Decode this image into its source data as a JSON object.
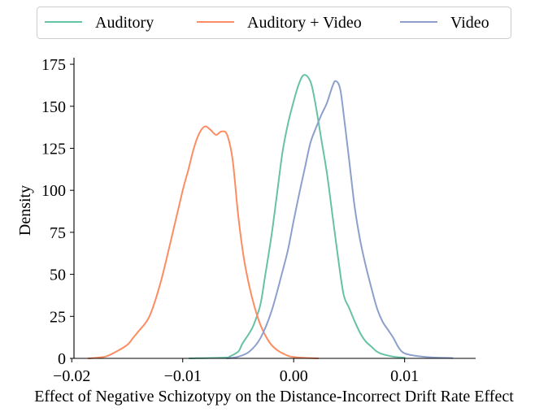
{
  "chart_data": {
    "type": "line",
    "title": "",
    "xlabel": "Effect of Negative Schizotypy on the Distance-Incorrect Drift Rate Effect",
    "ylabel": "Density",
    "xlim": [
      -0.0198,
      0.0164
    ],
    "ylim": [
      0,
      176
    ],
    "x_ticks": [
      -0.02,
      -0.01,
      0.0,
      0.01
    ],
    "x_tick_labels": [
      "−0.02",
      "−0.01",
      "0.00",
      "0.01"
    ],
    "y_ticks": [
      0,
      25,
      50,
      75,
      100,
      125,
      150,
      175
    ],
    "y_tick_labels": [
      "0",
      "25",
      "50",
      "75",
      "100",
      "125",
      "150",
      "175"
    ],
    "grid": false,
    "legend": {
      "placement": "top-center",
      "columns": 3
    },
    "series": [
      {
        "name": "Auditory",
        "color": "#66c2a5",
        "points": [
          [
            -0.0094,
            0
          ],
          [
            -0.006,
            0.5
          ],
          [
            -0.0058,
            1
          ],
          [
            -0.005,
            4
          ],
          [
            -0.0046,
            9
          ],
          [
            -0.004,
            15
          ],
          [
            -0.0036,
            20
          ],
          [
            -0.003,
            32
          ],
          [
            -0.0026,
            48
          ],
          [
            -0.002,
            73
          ],
          [
            -0.0015,
            98
          ],
          [
            -0.001,
            123
          ],
          [
            -0.0005,
            140
          ],
          [
            0.0,
            153
          ],
          [
            0.0004,
            162
          ],
          [
            0.0008,
            168
          ],
          [
            0.0012,
            168
          ],
          [
            0.0016,
            163
          ],
          [
            0.002,
            150
          ],
          [
            0.0025,
            130
          ],
          [
            0.003,
            110
          ],
          [
            0.0035,
            85
          ],
          [
            0.004,
            60
          ],
          [
            0.0045,
            38
          ],
          [
            0.005,
            30
          ],
          [
            0.0055,
            22
          ],
          [
            0.006,
            15
          ],
          [
            0.0065,
            10
          ],
          [
            0.007,
            7
          ],
          [
            0.0075,
            4
          ],
          [
            0.008,
            2.5
          ],
          [
            0.009,
            1
          ],
          [
            0.01,
            0.4
          ]
        ]
      },
      {
        "name": "Auditory + Video",
        "color": "#fc8d62",
        "points": [
          [
            -0.0185,
            0
          ],
          [
            -0.017,
            1
          ],
          [
            -0.016,
            4
          ],
          [
            -0.015,
            8
          ],
          [
            -0.0145,
            12
          ],
          [
            -0.014,
            16
          ],
          [
            -0.013,
            25
          ],
          [
            -0.012,
            45
          ],
          [
            -0.011,
            72
          ],
          [
            -0.01,
            100
          ],
          [
            -0.0095,
            112
          ],
          [
            -0.009,
            125
          ],
          [
            -0.0085,
            134
          ],
          [
            -0.008,
            138
          ],
          [
            -0.0075,
            136
          ],
          [
            -0.007,
            133
          ],
          [
            -0.0065,
            135
          ],
          [
            -0.006,
            133
          ],
          [
            -0.0055,
            118
          ],
          [
            -0.005,
            85
          ],
          [
            -0.0045,
            60
          ],
          [
            -0.004,
            43
          ],
          [
            -0.0035,
            30
          ],
          [
            -0.003,
            20
          ],
          [
            -0.0025,
            13
          ],
          [
            -0.002,
            8
          ],
          [
            -0.0015,
            5
          ],
          [
            -0.001,
            3
          ],
          [
            -0.0005,
            1.5
          ],
          [
            0.0,
            0.8
          ],
          [
            0.001,
            0.3
          ],
          [
            0.0022,
            0
          ]
        ]
      },
      {
        "name": "Video",
        "color": "#8da0cb",
        "points": [
          [
            -0.006,
            0
          ],
          [
            -0.005,
            1
          ],
          [
            -0.004,
            4
          ],
          [
            -0.003,
            12
          ],
          [
            -0.002,
            28
          ],
          [
            -0.001,
            52
          ],
          [
            -0.0005,
            65
          ],
          [
            0.0,
            82
          ],
          [
            0.0005,
            98
          ],
          [
            0.001,
            113
          ],
          [
            0.0015,
            128
          ],
          [
            0.002,
            137
          ],
          [
            0.0025,
            145
          ],
          [
            0.003,
            152
          ],
          [
            0.0035,
            162
          ],
          [
            0.0038,
            165
          ],
          [
            0.0042,
            160
          ],
          [
            0.0046,
            140
          ],
          [
            0.005,
            118
          ],
          [
            0.0055,
            90
          ],
          [
            0.006,
            70
          ],
          [
            0.0065,
            55
          ],
          [
            0.007,
            42
          ],
          [
            0.0075,
            30
          ],
          [
            0.008,
            22
          ],
          [
            0.0085,
            17
          ],
          [
            0.009,
            12
          ],
          [
            0.0095,
            6
          ],
          [
            0.01,
            3
          ],
          [
            0.011,
            1.5
          ],
          [
            0.012,
            0.8
          ],
          [
            0.013,
            0.4
          ],
          [
            0.0143,
            0.2
          ]
        ]
      }
    ]
  }
}
